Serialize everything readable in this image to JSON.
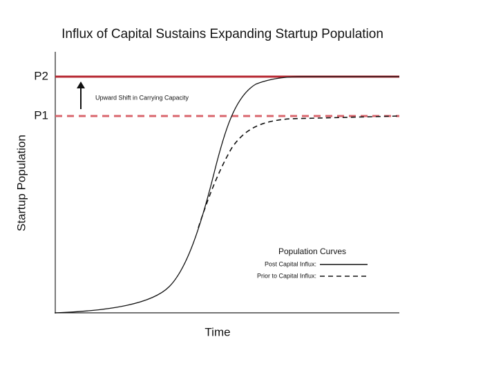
{
  "header": {
    "title": "Influx of Capital Sustains Expanding Startup Population"
  },
  "axes": {
    "y_label": "Startup Population",
    "x_label": "Time"
  },
  "levels": [
    {
      "label": "P2"
    },
    {
      "label": "P1"
    }
  ],
  "annotation": {
    "text": "Upward Shift in Carrying Capacity"
  },
  "legend": {
    "title": "Population Curves",
    "items": [
      {
        "label": "Post Capital Influx:"
      },
      {
        "label": "Prior to Capital Influx:"
      }
    ]
  }
}
